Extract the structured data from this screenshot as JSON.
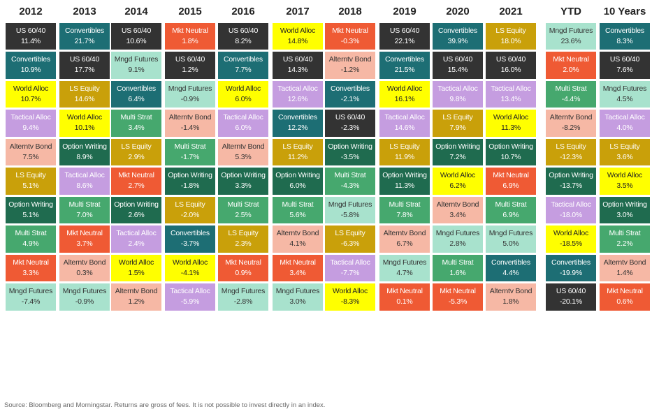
{
  "chart_data": {
    "type": "table",
    "columns": [
      "2012",
      "2013",
      "2014",
      "2015",
      "2016",
      "2017",
      "2018",
      "2019",
      "2020",
      "2021",
      "YTD",
      "10 Years"
    ],
    "cells": [
      [
        [
          "US 60/40",
          "11.4%"
        ],
        [
          "Convertibles",
          "10.9%"
        ],
        [
          "World Alloc",
          "10.7%"
        ],
        [
          "Tactical Alloc",
          "9.4%"
        ],
        [
          "Alterntv Bond",
          "7.5%"
        ],
        [
          "LS Equity",
          "5.1%"
        ],
        [
          "Option Writing",
          "5.1%"
        ],
        [
          "Multi Strat",
          "4.9%"
        ],
        [
          "Mkt Neutral",
          "3.3%"
        ],
        [
          "Mngd Futures",
          "-7.4%"
        ]
      ],
      [
        [
          "Convertibles",
          "21.7%"
        ],
        [
          "US 60/40",
          "17.7%"
        ],
        [
          "LS Equity",
          "14.6%"
        ],
        [
          "World Alloc",
          "10.1%"
        ],
        [
          "Option Writing",
          "8.9%"
        ],
        [
          "Tactical Alloc",
          "8.6%"
        ],
        [
          "Multi Strat",
          "7.0%"
        ],
        [
          "Mkt Neutral",
          "3.7%"
        ],
        [
          "Alterntv Bond",
          "0.3%"
        ],
        [
          "Mngd Futures",
          "-0.9%"
        ]
      ],
      [
        [
          "US 60/40",
          "10.6%"
        ],
        [
          "Mngd Futures",
          "9.1%"
        ],
        [
          "Convertibles",
          "6.4%"
        ],
        [
          "Multi Strat",
          "3.4%"
        ],
        [
          "LS Equity",
          "2.9%"
        ],
        [
          "Mkt Neutral",
          "2.7%"
        ],
        [
          "Option Writing",
          "2.6%"
        ],
        [
          "Tactical Alloc",
          "2.4%"
        ],
        [
          "World Alloc",
          "1.5%"
        ],
        [
          "Alterntv Bond",
          "1.2%"
        ]
      ],
      [
        [
          "Mkt Neutral",
          "1.8%"
        ],
        [
          "US 60/40",
          "1.2%"
        ],
        [
          "Mngd Futures",
          "-0.9%"
        ],
        [
          "Alterntv Bond",
          "-1.4%"
        ],
        [
          "Multi Strat",
          "-1.7%"
        ],
        [
          "Option Writing",
          "-1.8%"
        ],
        [
          "LS Equity",
          "-2.0%"
        ],
        [
          "Convertibles",
          "-3.7%"
        ],
        [
          "World Alloc",
          "-4.1%"
        ],
        [
          "Tactical Alloc",
          "-5.9%"
        ]
      ],
      [
        [
          "US 60/40",
          "8.2%"
        ],
        [
          "Convertibles",
          "7.7%"
        ],
        [
          "World Alloc",
          "6.0%"
        ],
        [
          "Tactical Alloc",
          "6.0%"
        ],
        [
          "Alterntv Bond",
          "5.3%"
        ],
        [
          "Option Writing",
          "3.3%"
        ],
        [
          "Multi Strat",
          "2.5%"
        ],
        [
          "LS Equity",
          "2.3%"
        ],
        [
          "Mkt Neutral",
          "0.9%"
        ],
        [
          "Mngd Futures",
          "-2.8%"
        ]
      ],
      [
        [
          "World Alloc",
          "14.8%"
        ],
        [
          "US 60/40",
          "14.3%"
        ],
        [
          "Tactical Alloc",
          "12.6%"
        ],
        [
          "Convertibles",
          "12.2%"
        ],
        [
          "LS Equity",
          "11.2%"
        ],
        [
          "Option Writing",
          "6.0%"
        ],
        [
          "Multi Strat",
          "5.6%"
        ],
        [
          "Alterntv Bond",
          "4.1%"
        ],
        [
          "Mkt Neutral",
          "3.4%"
        ],
        [
          "Mngd Futures",
          "3.0%"
        ]
      ],
      [
        [
          "Mkt Neutral",
          "-0.3%"
        ],
        [
          "Alterntv Bond",
          "-1.2%"
        ],
        [
          "Convertibles",
          "-2.1%"
        ],
        [
          "US 60/40",
          "-2.3%"
        ],
        [
          "Option Writing",
          "-3.5%"
        ],
        [
          "Multi Strat",
          "-4.3%"
        ],
        [
          "Mngd Futures",
          "-5.8%"
        ],
        [
          "LS Equity",
          "-6.3%"
        ],
        [
          "Tactical Alloc",
          "-7.7%"
        ],
        [
          "World Alloc",
          "-8.3%"
        ]
      ],
      [
        [
          "US 60/40",
          "22.1%"
        ],
        [
          "Convertibles",
          "21.5%"
        ],
        [
          "World Alloc",
          "16.1%"
        ],
        [
          "Tactical Alloc",
          "14.6%"
        ],
        [
          "LS Equity",
          "11.9%"
        ],
        [
          "Option Writing",
          "11.3%"
        ],
        [
          "Multi Strat",
          "7.8%"
        ],
        [
          "Alterntv Bond",
          "6.7%"
        ],
        [
          "Mngd Futures",
          "4.7%"
        ],
        [
          "Mkt Neutral",
          "0.1%"
        ]
      ],
      [
        [
          "Convertibles",
          "39.9%"
        ],
        [
          "US 60/40",
          "15.4%"
        ],
        [
          "Tactical Alloc",
          "9.8%"
        ],
        [
          "LS Equity",
          "7.9%"
        ],
        [
          "Option Writing",
          "7.2%"
        ],
        [
          "World Alloc",
          "6.2%"
        ],
        [
          "Alterntv Bond",
          "3.4%"
        ],
        [
          "Mngd Futures",
          "2.8%"
        ],
        [
          "Multi Strat",
          "1.6%"
        ],
        [
          "Mkt Neutral",
          "-5.3%"
        ]
      ],
      [
        [
          "LS Equity",
          "18.0%"
        ],
        [
          "US 60/40",
          "16.0%"
        ],
        [
          "Tactical Alloc",
          "13.4%"
        ],
        [
          "World Alloc",
          "11.3%"
        ],
        [
          "Option Writing",
          "10.7%"
        ],
        [
          "Mkt Neutral",
          "6.9%"
        ],
        [
          "Multi Strat",
          "6.9%"
        ],
        [
          "Mngd Futures",
          "5.0%"
        ],
        [
          "Convertibles",
          "4.4%"
        ],
        [
          "Alterntv Bond",
          "1.8%"
        ]
      ],
      [
        [
          "Mngd Futures",
          "23.6%"
        ],
        [
          "Mkt Neutral",
          "2.0%"
        ],
        [
          "Multi Strat",
          "-4.4%"
        ],
        [
          "Alterntv Bond",
          "-8.2%"
        ],
        [
          "LS Equity",
          "-12.3%"
        ],
        [
          "Option Writing",
          "-13.7%"
        ],
        [
          "Tactical Alloc",
          "-18.0%"
        ],
        [
          "World Alloc",
          "-18.5%"
        ],
        [
          "Convertibles",
          "-19.9%"
        ],
        [
          "US 60/40",
          "-20.1%"
        ]
      ],
      [
        [
          "Convertibles",
          "8.3%"
        ],
        [
          "US 60/40",
          "7.6%"
        ],
        [
          "Mngd Futures",
          "4.5%"
        ],
        [
          "Tactical Alloc",
          "4.0%"
        ],
        [
          "LS Equity",
          "3.6%"
        ],
        [
          "World Alloc",
          "3.5%"
        ],
        [
          "Option Writing",
          "3.0%"
        ],
        [
          "Multi Strat",
          "2.2%"
        ],
        [
          "Alterntv Bond",
          "1.4%"
        ],
        [
          "Mkt Neutral",
          "0.6%"
        ]
      ]
    ]
  },
  "category_colors": {
    "US 60/40": "#333333",
    "Convertibles": "#1d6e74",
    "World Alloc": "#ffff00",
    "Tactical Alloc": "#c59de0",
    "Alterntv Bond": "#f6b8a5",
    "LS Equity": "#c9a00a",
    "Option Writing": "#1f6b4f",
    "Multi Strat": "#46a86e",
    "Mkt Neutral": "#ef5a34",
    "Mngd Futures": "#a8e2cd"
  },
  "category_text_colors": {
    "US 60/40": "#ffffff",
    "Convertibles": "#ffffff",
    "World Alloc": "#222222",
    "Tactical Alloc": "#ffffff",
    "Alterntv Bond": "#333333",
    "LS Equity": "#ffffff",
    "Option Writing": "#ffffff",
    "Multi Strat": "#ffffff",
    "Mkt Neutral": "#ffffff",
    "Mngd Futures": "#333333"
  },
  "footnote": "Source: Bloomberg and Morningstar. Returns are gross of fees. It is not possible to invest directly in an index."
}
